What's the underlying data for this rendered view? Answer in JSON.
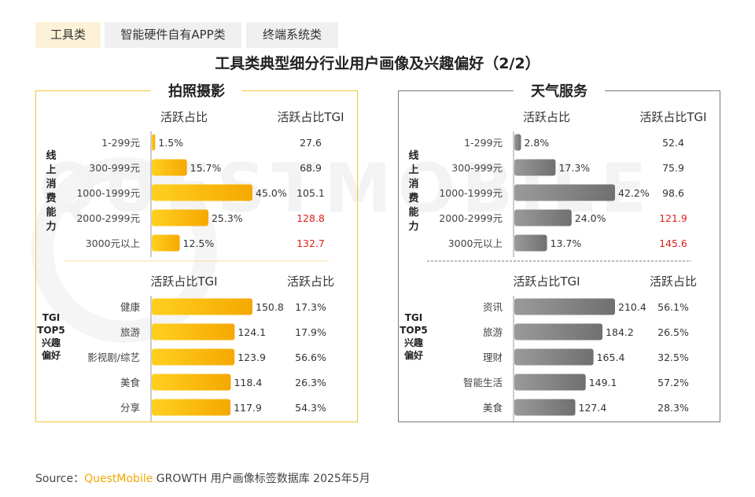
{
  "tabs": [
    {
      "label": "工具类",
      "active": true
    },
    {
      "label": "智能硬件自有APP类",
      "active": false
    },
    {
      "label": "终端系统类",
      "active": false
    }
  ],
  "title": "工具类典型细分行业用户画像及兴趣偏好（2/2）",
  "watermark": "QUESTMOBILE",
  "colors": {
    "left_bar": "#f7b500",
    "right_bar": "#7f7f7f",
    "highlight": "#e0201b",
    "left_border": "#f5c431"
  },
  "chart_data": [
    {
      "type": "bar",
      "title": "拍照摄影",
      "sections": [
        {
          "row_label": "线上消费能力",
          "bar_header": "活跃占比",
          "value_header": "活跃占比TGI",
          "categories": [
            "1-299元",
            "300-999元",
            "1000-1999元",
            "2000-2999元",
            "3000元以上"
          ],
          "bar_values": [
            1.5,
            15.7,
            45.0,
            25.3,
            12.5
          ],
          "bar_labels": [
            "1.5%",
            "15.7%",
            "45.0%",
            "25.3%",
            "12.5%"
          ],
          "side_values": [
            "27.6",
            "68.9",
            "105.1",
            "128.8",
            "132.7"
          ],
          "side_highlight": [
            false,
            false,
            false,
            true,
            true
          ],
          "bar_max": 45.0
        },
        {
          "row_label": "TGI TOP5兴趣偏好",
          "bar_header": "活跃占比TGI",
          "value_header": "活跃占比",
          "categories": [
            "健康",
            "旅游",
            "影视剧/综艺",
            "美食",
            "分享"
          ],
          "bar_values": [
            150.8,
            124.1,
            123.9,
            118.4,
            117.9
          ],
          "bar_labels": [
            "150.8",
            "124.1",
            "123.9",
            "118.4",
            "117.9"
          ],
          "side_values": [
            "17.3%",
            "17.9%",
            "56.6%",
            "26.3%",
            "54.3%"
          ],
          "side_highlight": [
            false,
            false,
            false,
            false,
            false
          ],
          "bar_max": 150.8
        }
      ]
    },
    {
      "type": "bar",
      "title": "天气服务",
      "sections": [
        {
          "row_label": "线上消费能力",
          "bar_header": "活跃占比",
          "value_header": "活跃占比TGI",
          "categories": [
            "1-299元",
            "300-999元",
            "1000-1999元",
            "2000-2999元",
            "3000元以上"
          ],
          "bar_values": [
            2.8,
            17.3,
            42.2,
            24.0,
            13.7
          ],
          "bar_labels": [
            "2.8%",
            "17.3%",
            "42.2%",
            "24.0%",
            "13.7%"
          ],
          "side_values": [
            "52.4",
            "75.9",
            "98.6",
            "121.9",
            "145.6"
          ],
          "side_highlight": [
            false,
            false,
            false,
            true,
            true
          ],
          "bar_max": 42.2
        },
        {
          "row_label": "TGI TOP5兴趣偏好",
          "bar_header": "活跃占比TGI",
          "value_header": "活跃占比",
          "categories": [
            "资讯",
            "旅游",
            "理财",
            "智能生活",
            "美食"
          ],
          "bar_values": [
            210.4,
            184.2,
            165.4,
            149.1,
            127.4
          ],
          "bar_labels": [
            "210.4",
            "184.2",
            "165.4",
            "149.1",
            "127.4"
          ],
          "side_values": [
            "56.1%",
            "26.5%",
            "32.5%",
            "57.2%",
            "28.3%"
          ],
          "side_highlight": [
            false,
            false,
            false,
            false,
            false
          ],
          "bar_max": 210.4
        }
      ]
    }
  ],
  "source": {
    "prefix": "Source：",
    "brand": "QuestMobile",
    "text": " GROWTH 用户画像标签数据库 2025年5月"
  }
}
